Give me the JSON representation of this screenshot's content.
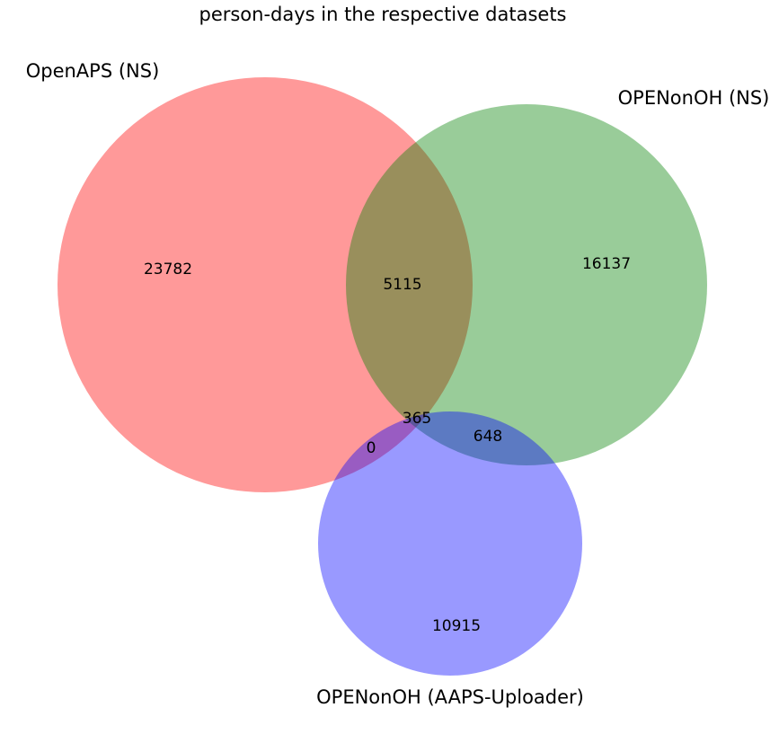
{
  "title": "person-days in the respective datasets",
  "sets": [
    {
      "id": "A",
      "label": "OpenAPS (NS)",
      "color": "#ff0000"
    },
    {
      "id": "B",
      "label": "OPENonOH (NS)",
      "color": "#008000"
    },
    {
      "id": "C",
      "label": "OPENonOH (AAPS-Uploader)",
      "color": "#0000ff"
    }
  ],
  "regions": {
    "A_only": "23782",
    "B_only": "16137",
    "C_only": "10915",
    "A_and_B": "5115",
    "A_and_C": "0",
    "B_and_C": "648",
    "A_and_B_and_C": "365"
  },
  "chart_data": {
    "type": "venn",
    "title": "person-days in the respective datasets",
    "sets": [
      "OpenAPS (NS)",
      "OPENonOH (NS)",
      "OPENonOH (AAPS-Uploader)"
    ],
    "region_values": {
      "OpenAPS (NS) only": 23782,
      "OPENonOH (NS) only": 16137,
      "OPENonOH (AAPS-Uploader) only": 10915,
      "OpenAPS (NS) & OPENonOH (NS)": 5115,
      "OpenAPS (NS) & OPENonOH (AAPS-Uploader)": 0,
      "OPENonOH (NS) & OPENonOH (AAPS-Uploader)": 648,
      "all three": 365
    }
  }
}
